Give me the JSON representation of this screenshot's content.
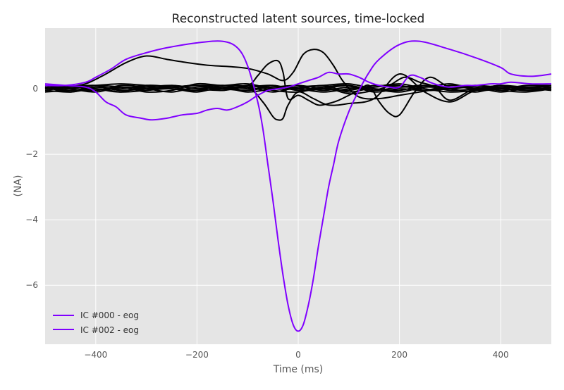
{
  "chart_data": {
    "type": "line",
    "title": "Reconstructed latent sources, time-locked",
    "xlabel": "Time (ms)",
    "ylabel": "(NA)",
    "xlim": [
      -500,
      500
    ],
    "ylim": [
      -7.8,
      1.85
    ],
    "x_ticks": [
      -400,
      -200,
      0,
      200,
      400
    ],
    "y_ticks": [
      0,
      -2,
      -4,
      -6
    ],
    "x_tick_labels": [
      "−400",
      "−200",
      "0",
      "200",
      "400"
    ],
    "y_tick_labels": [
      "0",
      "−2",
      "−4",
      "−6"
    ],
    "grid": true,
    "legend_position": "lower-left",
    "background": "#e5e5e5",
    "highlight_color": "#8000ff",
    "other_color": "#000000",
    "legend": [
      "IC #000 - eog",
      "IC #002 - eog"
    ],
    "highlight_series": [
      {
        "name": "IC #000 - eog",
        "x": [
          -500,
          -460,
          -420,
          -400,
          -370,
          -340,
          -300,
          -260,
          -200,
          -150,
          -120,
          -100,
          -80,
          -70,
          -60,
          -50,
          -40,
          -30,
          -20,
          -10,
          0,
          10,
          20,
          30,
          40,
          50,
          60,
          70,
          80,
          100,
          120,
          140,
          160,
          200,
          240,
          300,
          350,
          400,
          420,
          460,
          500
        ],
        "y": [
          0.1,
          0.1,
          0.2,
          0.35,
          0.6,
          0.9,
          1.1,
          1.25,
          1.4,
          1.45,
          1.25,
          0.7,
          -0.4,
          -1.2,
          -2.3,
          -3.4,
          -4.6,
          -5.7,
          -6.6,
          -7.2,
          -7.4,
          -7.2,
          -6.6,
          -5.8,
          -4.8,
          -3.9,
          -3.0,
          -2.3,
          -1.6,
          -0.7,
          -0.05,
          0.5,
          0.9,
          1.35,
          1.45,
          1.2,
          0.95,
          0.65,
          0.45,
          0.38,
          0.45
        ]
      },
      {
        "name": "IC #002 - eog",
        "x": [
          -500,
          -460,
          -420,
          -400,
          -380,
          -360,
          -340,
          -310,
          -290,
          -260,
          -230,
          -200,
          -180,
          -160,
          -140,
          -120,
          -100,
          -80,
          -60,
          -40,
          -20,
          0,
          20,
          40,
          60,
          80,
          100,
          120,
          140,
          160,
          180,
          200,
          220,
          240,
          260,
          280,
          300,
          330,
          350,
          380,
          400,
          420,
          460,
          500
        ],
        "y": [
          0.15,
          0.1,
          0.05,
          -0.1,
          -0.4,
          -0.55,
          -0.8,
          -0.9,
          -0.95,
          -0.9,
          -0.8,
          -0.75,
          -0.65,
          -0.6,
          -0.65,
          -0.55,
          -0.4,
          -0.2,
          -0.05,
          0.0,
          0.05,
          0.15,
          0.25,
          0.35,
          0.5,
          0.45,
          0.45,
          0.35,
          0.2,
          0.1,
          0.05,
          0.05,
          0.4,
          0.35,
          0.2,
          0.1,
          0.05,
          0.1,
          0.1,
          0.15,
          0.15,
          0.2,
          0.15,
          0.15
        ]
      }
    ],
    "other_series": [
      {
        "x": [
          -500,
          -460,
          -420,
          -380,
          -340,
          -300,
          -260,
          -220,
          -180,
          -140,
          -100,
          -60,
          -30,
          -10,
          10,
          30,
          50,
          70,
          90,
          120,
          160,
          200,
          240,
          280,
          320,
          360,
          400,
          440,
          480,
          500
        ],
        "y": [
          0.0,
          0.05,
          0.15,
          0.45,
          0.8,
          1.0,
          0.9,
          0.8,
          0.72,
          0.68,
          0.62,
          0.45,
          0.25,
          0.5,
          1.05,
          1.2,
          1.1,
          0.7,
          0.2,
          -0.25,
          -0.3,
          -0.2,
          -0.1,
          0.0,
          0.05,
          -0.05,
          0.0,
          0.05,
          0.0,
          0.05
        ]
      },
      {
        "x": [
          -500,
          -450,
          -400,
          -350,
          -300,
          -250,
          -200,
          -150,
          -100,
          -80,
          -60,
          -40,
          -30,
          -20,
          0,
          20,
          40,
          60,
          80,
          100,
          120,
          140,
          160,
          180,
          200,
          230,
          260,
          300,
          350,
          400,
          450,
          500
        ],
        "y": [
          0.05,
          -0.05,
          0.05,
          -0.05,
          0.0,
          0.05,
          0.1,
          0.05,
          0.1,
          0.4,
          0.75,
          0.85,
          0.5,
          -0.3,
          -0.2,
          -0.35,
          -0.5,
          -0.45,
          -0.35,
          -0.2,
          -0.05,
          0.1,
          -0.4,
          -0.75,
          -0.8,
          -0.1,
          0.35,
          0.05,
          0.1,
          0.05,
          0.05,
          0.1
        ]
      },
      {
        "x": [
          -500,
          -450,
          -400,
          -350,
          -300,
          -250,
          -200,
          -150,
          -100,
          -70,
          -50,
          -40,
          -30,
          -20,
          0,
          30,
          60,
          100,
          150,
          200,
          250,
          300,
          350,
          400,
          450,
          500
        ],
        "y": [
          0.1,
          0.05,
          0.1,
          0.15,
          0.1,
          0.05,
          0.1,
          0.1,
          0.05,
          -0.4,
          -0.85,
          -0.95,
          -0.9,
          -0.5,
          -0.1,
          -0.3,
          -0.5,
          -0.45,
          -0.3,
          0.45,
          -0.1,
          -0.4,
          -0.05,
          0.0,
          -0.05,
          0.0
        ]
      },
      {
        "x": [
          -500,
          -450,
          -400,
          -350,
          -300,
          -250,
          -200,
          -150,
          -100,
          -50,
          0,
          50,
          100,
          150,
          180,
          210,
          240,
          270,
          300,
          350,
          400,
          450,
          500
        ],
        "y": [
          -0.05,
          -0.1,
          0.0,
          -0.1,
          -0.05,
          0.0,
          -0.1,
          0.05,
          -0.05,
          0.1,
          -0.05,
          0.05,
          -0.15,
          -0.05,
          0.1,
          0.35,
          0.2,
          0.05,
          -0.35,
          0.0,
          -0.1,
          0.0,
          -0.05
        ]
      },
      {
        "x": [
          -500,
          -450,
          -400,
          -350,
          -300,
          -250,
          -200,
          -150,
          -100,
          -50,
          0,
          50,
          100,
          150,
          200,
          250,
          300,
          350,
          400,
          450,
          500
        ],
        "y": [
          0.05,
          0.0,
          0.1,
          0.05,
          -0.05,
          0.1,
          0.0,
          -0.05,
          0.05,
          -0.1,
          0.05,
          0.1,
          0.15,
          0.0,
          -0.1,
          0.05,
          0.0,
          -0.1,
          0.05,
          0.0,
          0.1
        ]
      },
      {
        "x": [
          -500,
          -450,
          -400,
          -350,
          -300,
          -250,
          -200,
          -150,
          -100,
          -50,
          0,
          50,
          100,
          150,
          200,
          250,
          300,
          350,
          400,
          450,
          500
        ],
        "y": [
          -0.1,
          -0.05,
          -0.05,
          0.05,
          0.0,
          -0.1,
          0.05,
          0.0,
          -0.05,
          0.05,
          0.0,
          -0.1,
          0.0,
          0.05,
          0.1,
          -0.05,
          0.0,
          0.05,
          -0.05,
          -0.1,
          0.0
        ]
      },
      {
        "x": [
          -500,
          -450,
          -400,
          -350,
          -300,
          -250,
          -200,
          -150,
          -100,
          -50,
          0,
          50,
          100,
          150,
          200,
          250,
          300,
          350,
          400,
          450,
          500
        ],
        "y": [
          0.0,
          0.1,
          -0.05,
          0.1,
          0.05,
          0.0,
          -0.05,
          0.1,
          0.0,
          0.05,
          0.1,
          0.0,
          -0.05,
          0.1,
          0.05,
          0.1,
          -0.05,
          0.0,
          0.1,
          0.05,
          0.05
        ]
      },
      {
        "x": [
          -500,
          -450,
          -400,
          -350,
          -300,
          -250,
          -200,
          -150,
          -100,
          -50,
          0,
          50,
          100,
          150,
          200,
          250,
          300,
          350,
          400,
          450,
          500
        ],
        "y": [
          0.05,
          -0.1,
          0.05,
          0.0,
          0.1,
          0.05,
          0.1,
          -0.05,
          0.1,
          -0.05,
          -0.1,
          0.05,
          0.1,
          -0.1,
          0.0,
          -0.05,
          0.1,
          0.05,
          -0.05,
          0.05,
          -0.05
        ]
      },
      {
        "x": [
          -500,
          -450,
          -400,
          -350,
          -300,
          -250,
          -200,
          -150,
          -100,
          -50,
          0,
          50,
          100,
          150,
          200,
          250,
          300,
          350,
          400,
          450,
          500
        ],
        "y": [
          -0.05,
          0.05,
          0.1,
          -0.05,
          0.05,
          0.1,
          0.0,
          0.05,
          -0.1,
          0.0,
          0.05,
          -0.05,
          0.05,
          0.0,
          -0.05,
          0.1,
          0.05,
          0.1,
          0.0,
          0.1,
          0.1
        ]
      },
      {
        "x": [
          -500,
          -450,
          -400,
          -350,
          -300,
          -250,
          -200,
          -150,
          -100,
          -50,
          0,
          50,
          100,
          150,
          200,
          250,
          300,
          350,
          400,
          450,
          500
        ],
        "y": [
          0.1,
          0.0,
          -0.1,
          0.05,
          -0.1,
          -0.05,
          0.15,
          0.1,
          0.15,
          0.0,
          0.0,
          0.1,
          -0.1,
          0.05,
          0.15,
          0.0,
          -0.1,
          -0.05,
          0.05,
          0.0,
          0.0
        ]
      },
      {
        "x": [
          -500,
          -450,
          -400,
          -350,
          -300,
          -250,
          -200,
          -150,
          -100,
          -50,
          0,
          50,
          100,
          150,
          200,
          250,
          300,
          350,
          400,
          450,
          500
        ],
        "y": [
          0.0,
          0.05,
          0.0,
          -0.1,
          0.1,
          0.05,
          -0.05,
          0.0,
          0.05,
          0.1,
          -0.05,
          0.0,
          0.1,
          -0.05,
          0.05,
          0.05,
          0.15,
          0.0,
          0.1,
          -0.05,
          0.05
        ]
      }
    ]
  }
}
